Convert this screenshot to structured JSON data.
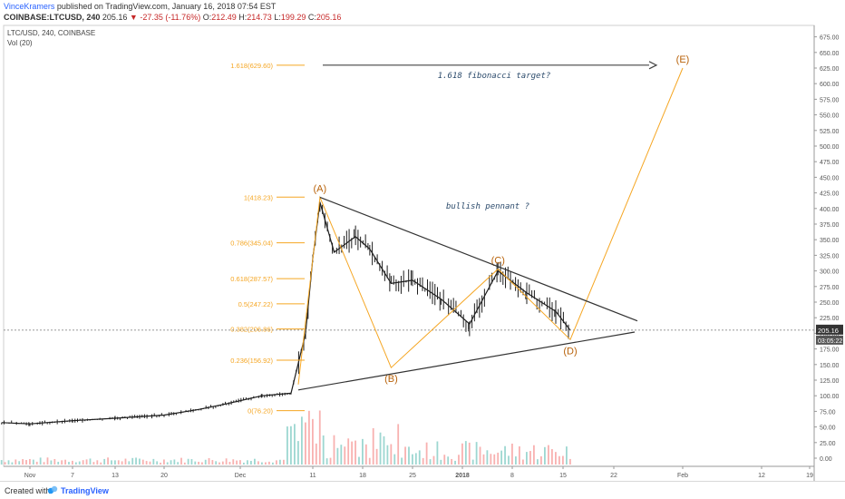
{
  "header": {
    "author": "VinceKramers",
    "published": "published on TradingView.com, January 16, 2018 07:54 EST",
    "symbol": "COINBASE:LTCUSD, 240",
    "price": "205.16",
    "change": "▼ -27.35 (-11.76%)",
    "o_label": "O:",
    "o_value": "212.49",
    "h_label": "H:",
    "h_value": "214.73",
    "l_label": "L:",
    "l_value": "199.29",
    "c_label": "C:",
    "c_value": "205.16"
  },
  "footer": {
    "created_with": "Created with",
    "brand": "TradingView"
  },
  "chart_data": {
    "type": "line",
    "title": "LTC/USD, 240, COINBASE",
    "volume_label": "Vol (20)",
    "y_range": [
      -25,
      687.5
    ],
    "y_ticks": [
      "675.00",
      "650.00",
      "625.00",
      "600.00",
      "575.00",
      "550.00",
      "525.00",
      "500.00",
      "475.00",
      "450.00",
      "425.00",
      "400.00",
      "375.00",
      "350.00",
      "325.00",
      "300.00",
      "275.00",
      "250.00",
      "225.00",
      "200.00",
      "175.00",
      "150.00",
      "125.00",
      "100.00",
      "75.00",
      "50.00",
      "25.00",
      "0.00"
    ],
    "x_ticks": [
      "Nov",
      "7",
      "13",
      "20",
      "Dec",
      "11",
      "18",
      "25",
      "2018",
      "8",
      "15",
      "22",
      "Feb",
      "12",
      "19"
    ],
    "current_price": "205.16",
    "countdown": "03:05:22",
    "fib_levels": [
      {
        "label": "1.618(629.60)",
        "value": 629.6
      },
      {
        "label": "1(418.23)",
        "value": 418.23
      },
      {
        "label": "0.786(345.04)",
        "value": 345.04
      },
      {
        "label": "0.618(287.57)",
        "value": 287.57
      },
      {
        "label": "0.5(247.22)",
        "value": 247.22
      },
      {
        "label": "0.382(206.86)",
        "value": 206.86
      },
      {
        "label": "0.236(156.92)",
        "value": 156.92
      },
      {
        "label": "0(76.20)",
        "value": 76.2
      }
    ],
    "wave_points": [
      {
        "label": "(A)",
        "date": "Dec 12, 2017",
        "value": 418
      },
      {
        "label": "(B)",
        "date": "Dec 22, 2017",
        "value": 145
      },
      {
        "label": "(C)",
        "date": "Jan 6, 2018",
        "value": 303
      },
      {
        "label": "(D)",
        "date": "Jan 16, 2018",
        "value": 190
      },
      {
        "label": "(E)",
        "date": "Feb 1, 2018",
        "value": 625
      }
    ],
    "price_series": {
      "dates": [
        "Oct 28",
        "Nov 1",
        "Nov 7",
        "Nov 13",
        "Nov 20",
        "Nov 25",
        "Nov 29",
        "Dec 4",
        "Dec 8",
        "Dec 10",
        "Dec 11",
        "Dec 12",
        "Dec 14",
        "Dec 17",
        "Dec 19",
        "Dec 22",
        "Dec 25",
        "Dec 29",
        "Jan 2",
        "Jan 6",
        "Jan 10",
        "Jan 14",
        "Jan 16"
      ],
      "values": [
        57,
        55,
        60,
        64,
        69,
        78,
        87,
        100,
        104,
        200,
        320,
        410,
        330,
        355,
        335,
        280,
        285,
        255,
        215,
        300,
        265,
        235,
        205
      ]
    },
    "annotations": [
      "1.618 fibonacci target?",
      "bullish pennant ?"
    ],
    "colors": {
      "fib": "#f5a623",
      "wave_label": "#b8620a",
      "trend": "#333333",
      "price_up": "#26a69a",
      "price_down": "#ef5350",
      "price_tag": "#333333"
    }
  }
}
